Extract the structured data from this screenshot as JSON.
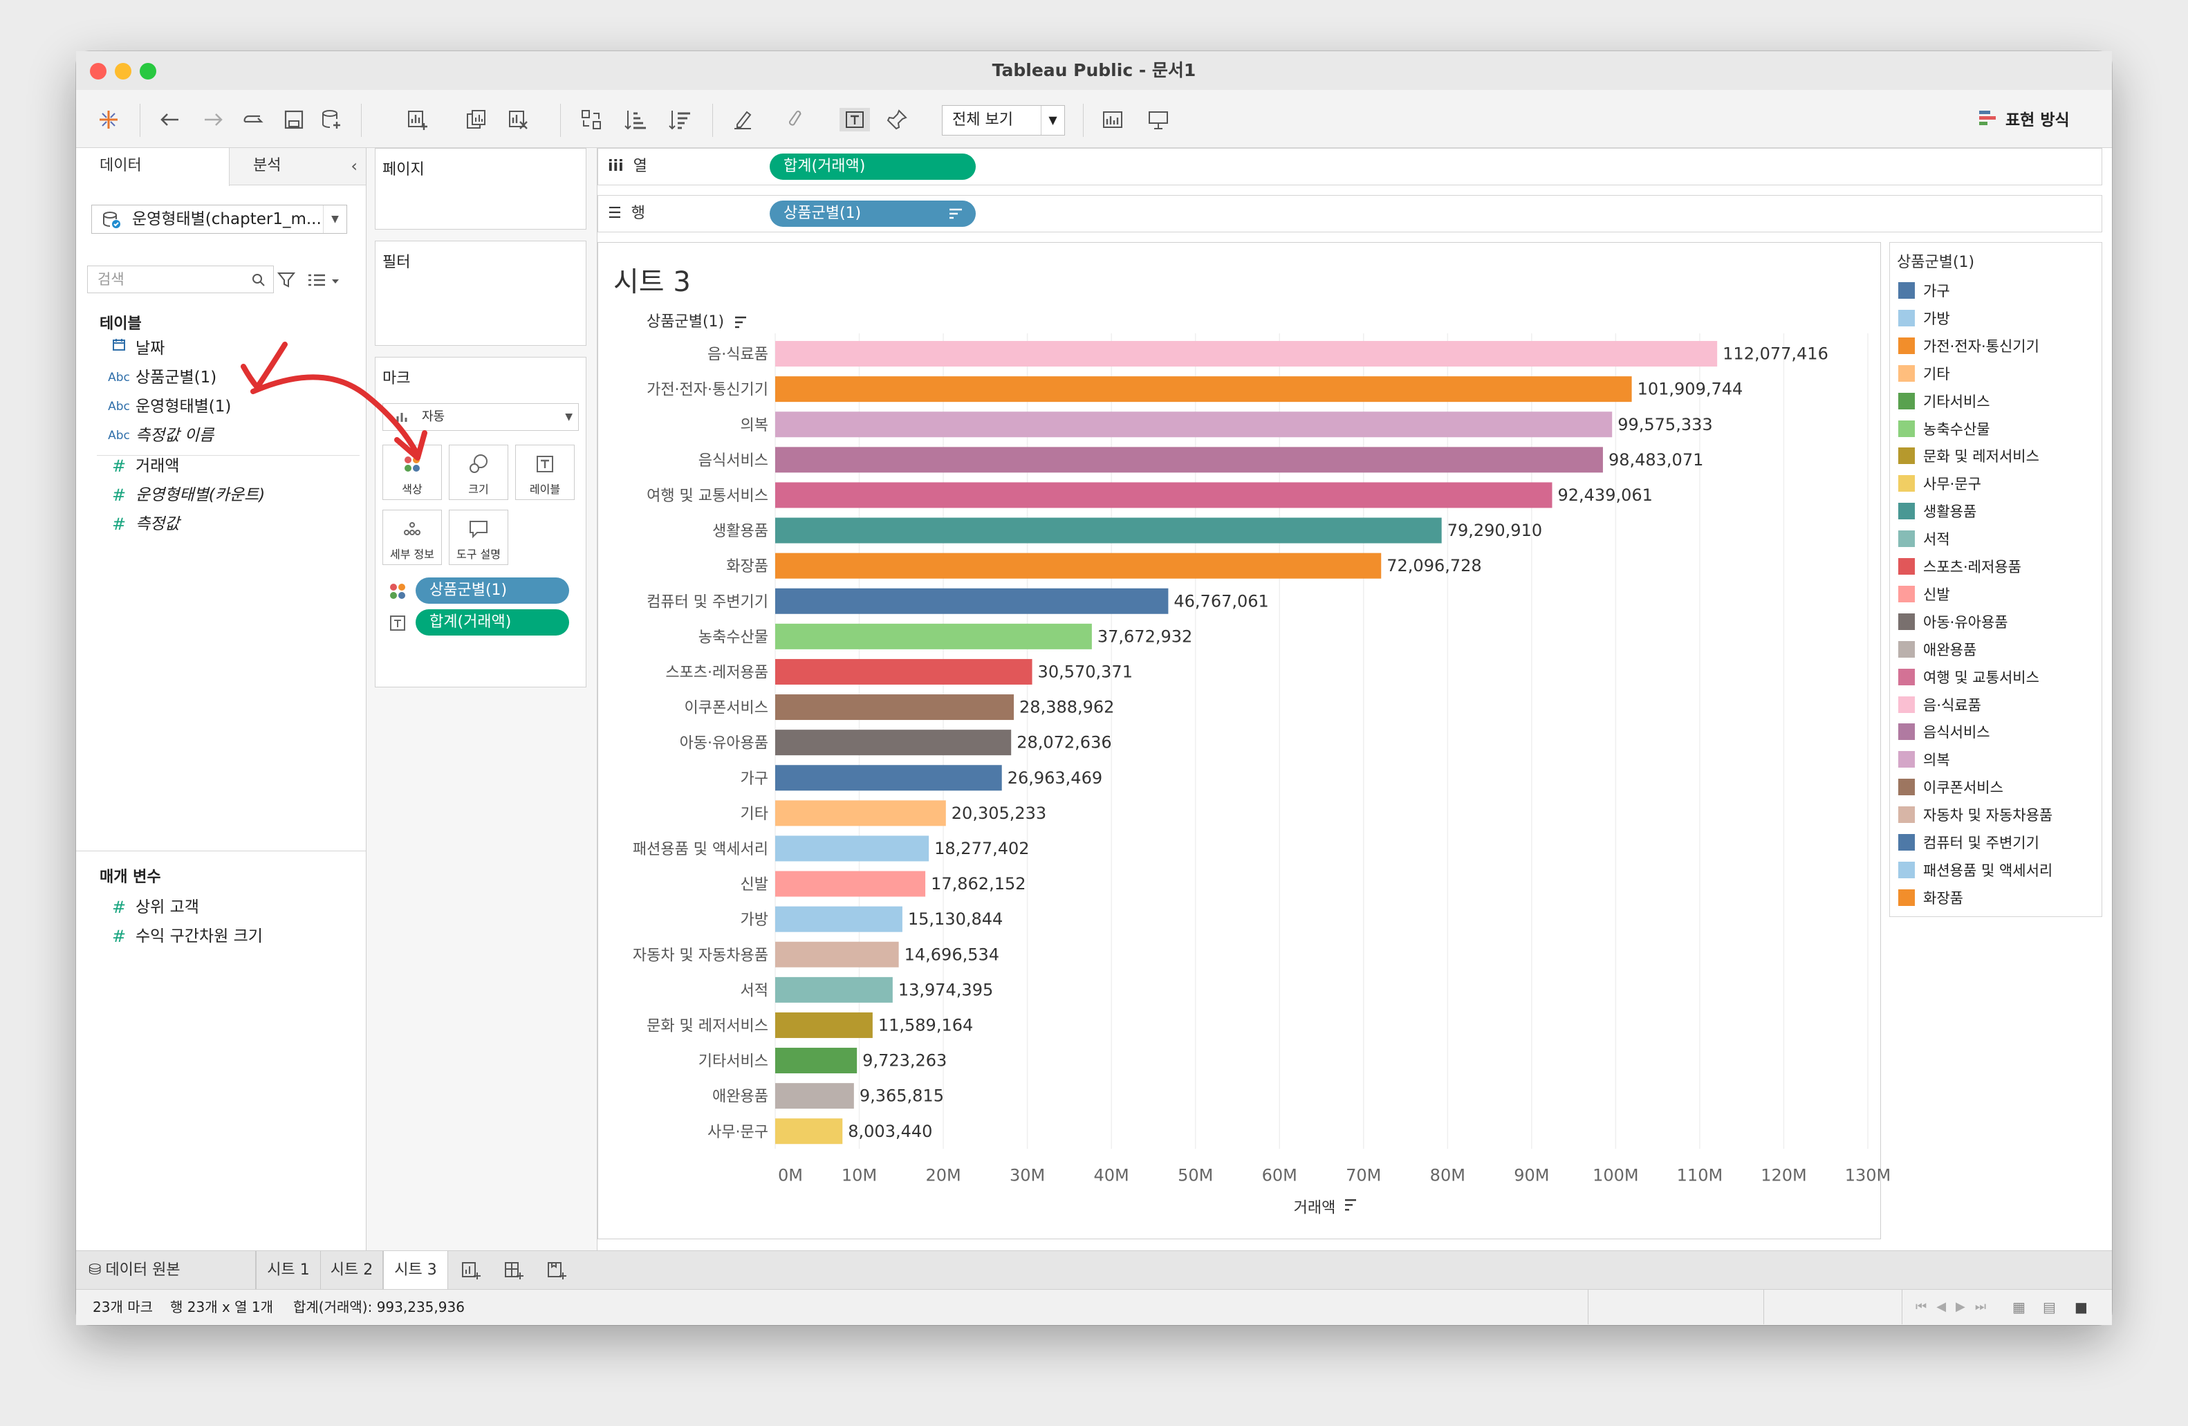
{
  "window": {
    "title": "Tableau Public - 문서1"
  },
  "toolbar": {
    "fit_label": "전체 보기",
    "show_me": "표현 방식"
  },
  "left": {
    "tab_data": "데이터",
    "tab_analysis": "분석",
    "datasource": "운영형태별(chapter1_m...",
    "search_placeholder": "검색",
    "tables_label": "테이블",
    "fields": [
      {
        "icon": "calendar",
        "type": "",
        "name": "날짜"
      },
      {
        "icon": "abc",
        "type": "Abc",
        "name": "상품군별(1)"
      },
      {
        "icon": "abc",
        "type": "Abc",
        "name": "운영형태별(1)"
      },
      {
        "icon": "abc",
        "type": "Abc",
        "name": "측정값 이름"
      },
      {
        "icon": "hash",
        "type": "#",
        "name": "거래액"
      },
      {
        "icon": "hash",
        "type": "#",
        "name": "운영형태별(카운트)"
      },
      {
        "icon": "hash",
        "type": "#",
        "name": "측정값"
      }
    ],
    "params_label": "매개 변수",
    "params": [
      {
        "type": "#",
        "name": "상위 고객"
      },
      {
        "type": "#",
        "name": "수익 구간차원 크기"
      }
    ]
  },
  "cards": {
    "pages": "페이지",
    "filters": "필터",
    "marks": "마크",
    "mark_type": "자동",
    "buttons": {
      "color": "색상",
      "size": "크기",
      "label": "레이블",
      "detail": "세부 정보",
      "tooltip": "도구 설명"
    },
    "pills": {
      "color": "상품군별(1)",
      "label": "합계(거래액)"
    }
  },
  "shelves": {
    "columns_label": "열",
    "columns_pill": "합계(거래액)",
    "rows_label": "행",
    "rows_pill": "상품군별(1)"
  },
  "sheet": {
    "title": "시트 3"
  },
  "chart_data": {
    "type": "bar",
    "orientation": "horizontal",
    "title": "",
    "ylabel": "상품군별(1)",
    "xlabel": "거래액",
    "xlim": [
      0,
      130000000
    ],
    "xticks": [
      "0M",
      "10M",
      "20M",
      "30M",
      "40M",
      "50M",
      "60M",
      "70M",
      "80M",
      "90M",
      "100M",
      "110M",
      "120M",
      "130M"
    ],
    "categories": [
      "음·식료품",
      "가전·전자·통신기기",
      "의복",
      "음식서비스",
      "여행 및 교통서비스",
      "생활용품",
      "화장품",
      "컴퓨터 및 주변기기",
      "농축수산물",
      "스포츠·레저용품",
      "이쿠폰서비스",
      "아동·유아용품",
      "가구",
      "기타",
      "패션용품 및 액세서리",
      "신발",
      "가방",
      "자동차 및 자동차용품",
      "서적",
      "문화 및 레저서비스",
      "기타서비스",
      "애완용품",
      "사무·문구"
    ],
    "values": [
      112077416,
      101909744,
      99575333,
      98483071,
      92439061,
      79290910,
      72096728,
      46767061,
      37672932,
      30570371,
      28388962,
      28072636,
      26963469,
      20305233,
      18277402,
      17862152,
      15130844,
      14696534,
      13974395,
      11589164,
      9723263,
      9365815,
      8003440
    ],
    "value_labels": [
      "112,077,416",
      "101,909,744",
      "99,575,333",
      "98,483,071",
      "92,439,061",
      "79,290,910",
      "72,096,728",
      "46,767,061",
      "37,672,932",
      "30,570,371",
      "28,388,962",
      "28,072,636",
      "26,963,469",
      "20,305,233",
      "18,277,402",
      "17,862,152",
      "15,130,844",
      "14,696,534",
      "13,974,395",
      "11,589,164",
      "9,723,263",
      "9,365,815",
      "8,003,440"
    ],
    "colors": [
      "#f9bed1",
      "#f28e2b",
      "#d4a6c8",
      "#b6779c",
      "#d4688f",
      "#4b9a94",
      "#f28e2b",
      "#4e79a7",
      "#8cd17d",
      "#e15759",
      "#9d7660",
      "#79706e",
      "#4e79a7",
      "#ffbe7d",
      "#a0cbe8",
      "#ff9d9a",
      "#a0cbe8",
      "#d7b5a6",
      "#86bcb6",
      "#b6992d",
      "#59a14f",
      "#bab0ac",
      "#f1ce63"
    ],
    "grid": true
  },
  "legend": {
    "title": "상품군별(1)",
    "items": [
      {
        "label": "가구",
        "color": "#4e79a7"
      },
      {
        "label": "가방",
        "color": "#a0cbe8"
      },
      {
        "label": "가전·전자·통신기기",
        "color": "#f28e2b"
      },
      {
        "label": "기타",
        "color": "#ffbe7d"
      },
      {
        "label": "기타서비스",
        "color": "#59a14f"
      },
      {
        "label": "농축수산물",
        "color": "#8cd17d"
      },
      {
        "label": "문화 및 레저서비스",
        "color": "#b6992d"
      },
      {
        "label": "사무·문구",
        "color": "#f1ce63"
      },
      {
        "label": "생활용품",
        "color": "#499894"
      },
      {
        "label": "서적",
        "color": "#86bcb6"
      },
      {
        "label": "스포츠·레저용품",
        "color": "#e15759"
      },
      {
        "label": "신발",
        "color": "#ff9d9a"
      },
      {
        "label": "아동·유아용품",
        "color": "#79706e"
      },
      {
        "label": "애완용품",
        "color": "#bab0ac"
      },
      {
        "label": "여행 및 교통서비스",
        "color": "#d37295"
      },
      {
        "label": "음·식료품",
        "color": "#fabfd2"
      },
      {
        "label": "음식서비스",
        "color": "#b07aa1"
      },
      {
        "label": "의복",
        "color": "#d4a6c8"
      },
      {
        "label": "이쿠폰서비스",
        "color": "#9d7660"
      },
      {
        "label": "자동차 및 자동차용품",
        "color": "#d7b5a6"
      },
      {
        "label": "컴퓨터 및 주변기기",
        "color": "#4e79a7"
      },
      {
        "label": "패션용품 및 액세서리",
        "color": "#a0cbe8"
      },
      {
        "label": "화장품",
        "color": "#f28e2b"
      }
    ]
  },
  "tabs": {
    "datasource": "데이터 원본",
    "sheets": [
      "시트 1",
      "시트 2",
      "시트 3"
    ]
  },
  "status": {
    "marks": "23개 마크",
    "rowscols": "행 23개 x 열 1개",
    "sum": "합계(거래액): 993,235,936"
  },
  "colors": {
    "accent_green": "#00a97a",
    "accent_blue": "#4a93ba",
    "annotation_red": "#e03131"
  }
}
